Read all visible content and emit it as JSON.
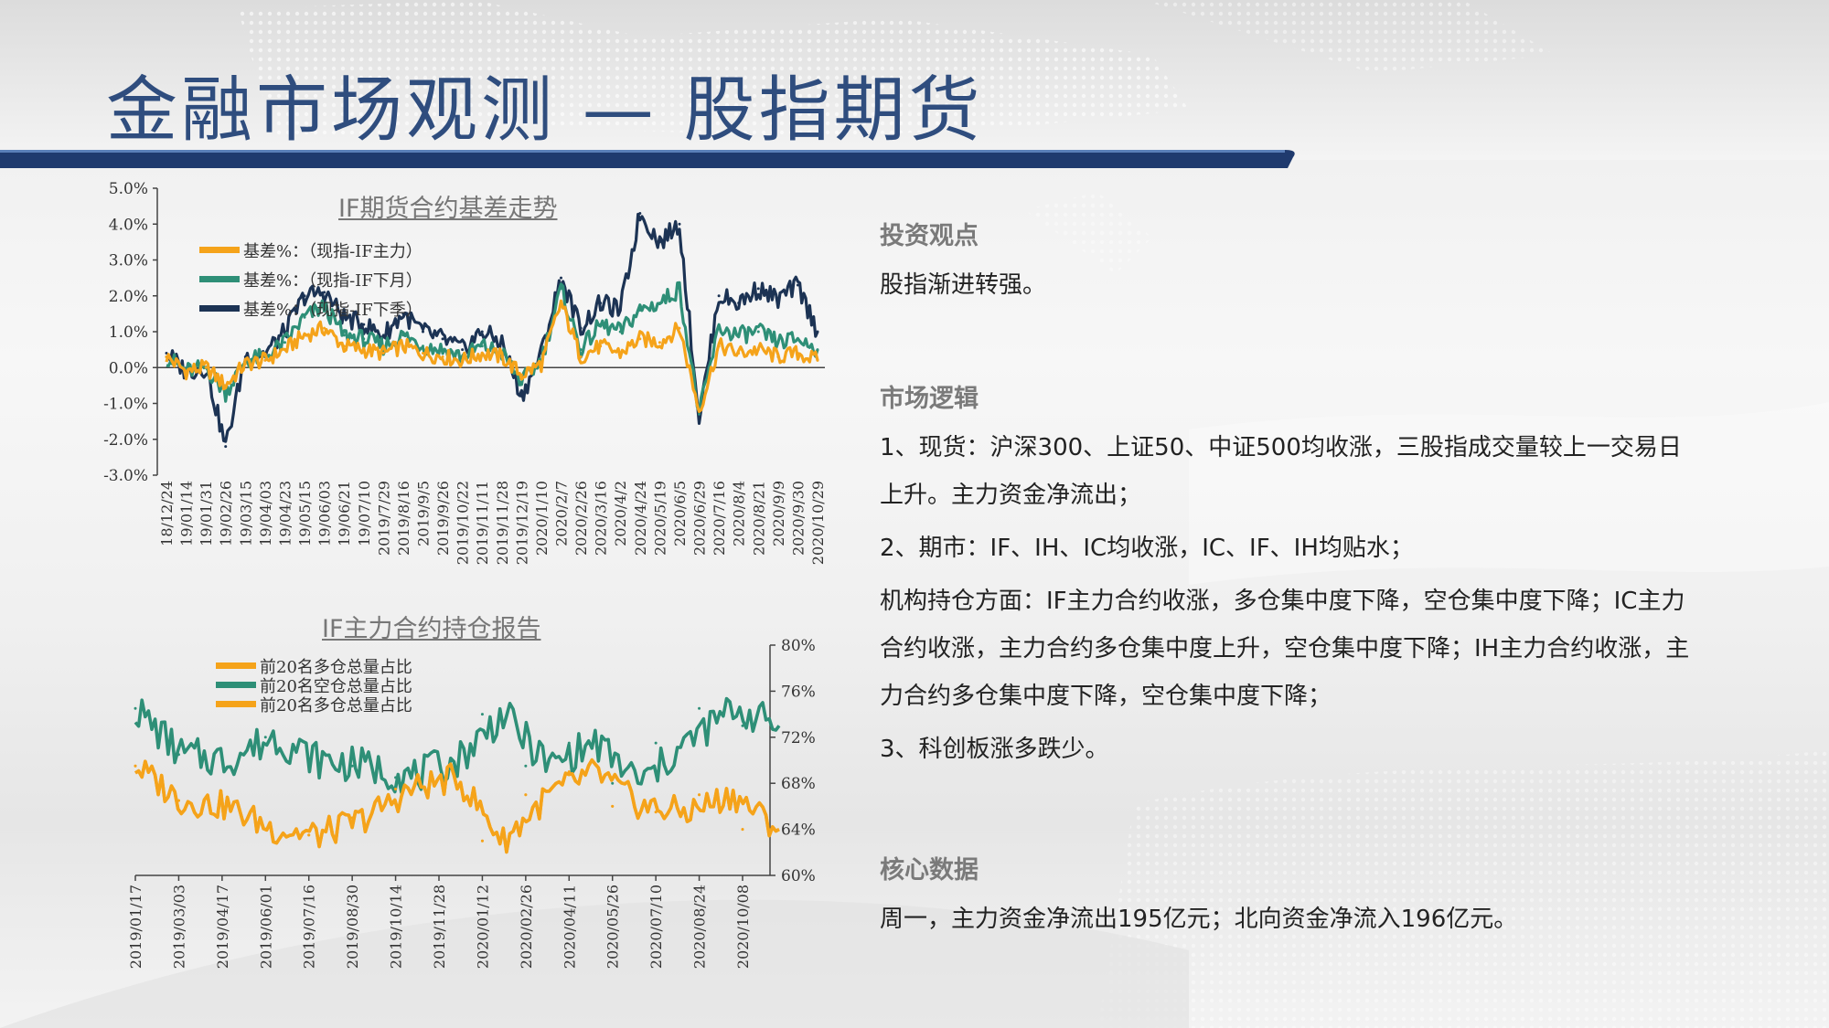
{
  "slide": {
    "title": "金融市场观测 — 股指期货"
  },
  "colors": {
    "title": "#2f4d7e",
    "bar_dark": "#1f3a6e",
    "orange": "#f5a31a",
    "green": "#2e8f77",
    "navy": "#1c3354"
  },
  "chart1": {
    "title": "IF期货合约基差走势",
    "legend": [
      "基差%：（现指-IF主力）",
      "基差%：（现指-IF下月）",
      "基差%：（现指-IF下季）"
    ],
    "y_ticks": [
      "5.0%",
      "4.0%",
      "3.0%",
      "2.0%",
      "1.0%",
      "0.0%",
      "-1.0%",
      "-2.0%",
      "-3.0%"
    ],
    "x_ticks": [
      "18/12/24",
      "19/01/14",
      "19/01/31",
      "19/02/26",
      "19/03/15",
      "19/04/03",
      "19/04/23",
      "19/05/15",
      "19/06/03",
      "19/06/21",
      "19/07/10",
      "2019/7/29",
      "2019/8/16",
      "2019/9/5",
      "2019/9/26",
      "2019/10/22",
      "2019/11/11",
      "2019/11/28",
      "2019/12/19",
      "2020/1/10",
      "2020/2/7",
      "2020/2/26",
      "2020/3/16",
      "2020/4/2",
      "2020/4/24",
      "2020/5/19",
      "2020/6/5",
      "2020/6/29",
      "2020/7/16",
      "2020/8/4",
      "2020/8/21",
      "2020/9/9",
      "2020/9/30",
      "2020/10/29"
    ]
  },
  "chart_data": [
    {
      "type": "line",
      "title": "IF期货合约基差走势",
      "ylim": [
        -3.0,
        5.0
      ],
      "unit": "%",
      "x": [
        "18/12/24",
        "19/01/14",
        "19/01/31",
        "19/02/26",
        "19/03/15",
        "19/04/03",
        "19/04/23",
        "19/05/15",
        "19/06/03",
        "19/06/21",
        "19/07/10",
        "2019/7/29",
        "2019/8/16",
        "2019/9/5",
        "2019/9/26",
        "2019/10/22",
        "2019/11/11",
        "2019/11/28",
        "2019/12/19",
        "2020/1/10",
        "2020/2/7",
        "2020/2/26",
        "2020/3/16",
        "2020/4/2",
        "2020/4/24",
        "2020/5/19",
        "2020/6/5",
        "2020/6/29",
        "2020/7/16",
        "2020/8/4",
        "2020/8/21",
        "2020/9/9",
        "2020/9/30",
        "2020/10/29"
      ],
      "series": [
        {
          "name": "基差%：（现指-IF主力）",
          "color": "#f5a31a",
          "values": [
            0.3,
            -0.1,
            0.0,
            -0.5,
            0.1,
            0.2,
            0.5,
            0.9,
            1.1,
            0.6,
            0.5,
            0.4,
            0.6,
            0.4,
            0.3,
            0.2,
            0.4,
            0.3,
            -0.2,
            0.1,
            1.8,
            0.3,
            0.6,
            0.4,
            0.8,
            0.7,
            1.1,
            -1.2,
            0.6,
            0.4,
            0.5,
            0.3,
            0.4,
            0.2
          ]
        },
        {
          "name": "基差%：（现指-IF下月）",
          "color": "#2e8f77",
          "values": [
            0.3,
            -0.1,
            0.0,
            -0.7,
            0.2,
            0.3,
            0.7,
            1.4,
            1.7,
            0.9,
            0.8,
            0.6,
            0.9,
            0.6,
            0.5,
            0.3,
            0.6,
            0.4,
            -0.4,
            0.2,
            2.2,
            0.5,
            1.2,
            1.0,
            1.6,
            1.8,
            2.2,
            -1.3,
            1.1,
            0.9,
            1.0,
            0.7,
            0.8,
            0.5
          ]
        },
        {
          "name": "基差%：（现指-IF下季）",
          "color": "#1c3354",
          "values": [
            0.4,
            -0.1,
            0.0,
            -2.2,
            0.3,
            0.4,
            1.0,
            2.0,
            2.1,
            1.4,
            1.2,
            0.9,
            1.5,
            1.0,
            0.8,
            0.5,
            1.0,
            0.7,
            -0.8,
            0.4,
            2.5,
            1.1,
            1.8,
            1.6,
            4.3,
            3.5,
            4.0,
            -1.4,
            2.0,
            1.8,
            2.2,
            1.9,
            2.3,
            1.0
          ]
        }
      ]
    },
    {
      "type": "line",
      "title": "IF主力合约持仓报告",
      "ylim": [
        60,
        80
      ],
      "unit": "%",
      "x": [
        "2019/01/17",
        "2019/03/03",
        "2019/04/17",
        "2019/06/01",
        "2019/07/16",
        "2019/08/30",
        "2019/10/14",
        "2019/11/28",
        "2020/01/12",
        "2020/02/26",
        "2020/04/11",
        "2020/05/26",
        "2020/07/10",
        "2020/08/24",
        "2020/10/08"
      ],
      "series": [
        {
          "name": "前20名多仓总量占比",
          "color": "#f5a31a",
          "values": [
            69.5,
            66.5,
            66,
            64,
            63.5,
            65,
            67.5,
            68.5,
            63,
            67,
            69,
            66,
            65.5,
            67,
            64
          ]
        },
        {
          "name": "前20名空仓总量占比",
          "color": "#2e8f77",
          "values": [
            74.5,
            70.5,
            70,
            72,
            70,
            69.5,
            68.5,
            70,
            74,
            69.5,
            71.5,
            68,
            71.5,
            74.5,
            73
          ]
        },
        {
          "name": "前20名多仓总量占比",
          "color": "#f5a31a",
          "values": [
            69.5,
            66.5,
            66,
            64,
            63.5,
            65,
            67.5,
            68.5,
            63,
            67,
            69,
            66,
            65.5,
            67,
            64
          ]
        }
      ]
    }
  ],
  "chart2": {
    "title": "IF主力合约持仓报告",
    "legend": [
      "前20名多仓总量占比",
      "前20名空仓总量占比",
      "前20名多仓总量占比"
    ],
    "y_ticks": [
      "80%",
      "76%",
      "72%",
      "68%",
      "64%",
      "60%"
    ],
    "x_ticks": [
      "2019/01/17",
      "2019/03/03",
      "2019/04/17",
      "2019/06/01",
      "2019/07/16",
      "2019/08/30",
      "2019/10/14",
      "2019/11/28",
      "2020/01/12",
      "2020/02/26",
      "2020/04/11",
      "2020/05/26",
      "2020/07/10",
      "2020/08/24",
      "2020/10/08"
    ]
  },
  "panel": {
    "view_head": "投资观点",
    "view_text": "股指渐进转强。",
    "logic_head": "市场逻辑",
    "logic_p1": "1、现货：沪深300、上证50、中证500均收涨，三股指成交量较上一交易日上升。主力资金净流出；",
    "logic_p2": "2、期市：IF、IH、IC均收涨，IC、IF、IH均贴水；",
    "logic_p3": "机构持仓方面：IF主力合约收涨，多仓集中度下降，空仓集中度下降；IC主力合约收涨，主力合约多仓集中度上升，空仓集中度下降；IH主力合约收涨，主力合约多仓集中度下降，空仓集中度下降；",
    "logic_p4": "3、科创板涨多跌少。",
    "data_head": "核心数据",
    "data_text": "周一，主力资金净流出195亿元；北向资金净流入196亿元。"
  }
}
